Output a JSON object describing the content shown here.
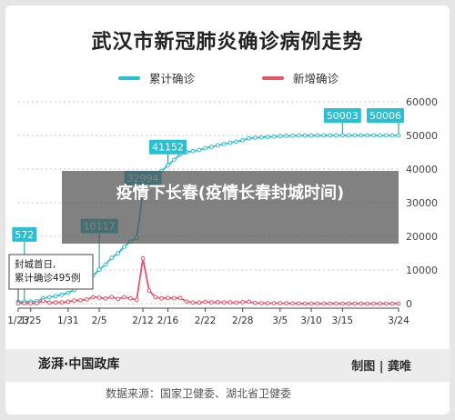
{
  "chart_data": {
    "type": "line",
    "title": "武汉市新冠肺炎确诊病例走势",
    "xlabel": "",
    "ylabel": "",
    "ylim": [
      0,
      60000
    ],
    "yticks": [
      0,
      10000,
      20000,
      30000,
      40000,
      50000,
      60000
    ],
    "ytick_labels": [
      "0",
      "10000",
      "20000",
      "30000",
      "40000",
      "50000",
      "60000"
    ],
    "xticks": [
      "1/23",
      "1/25",
      "1/31",
      "2/5",
      "2/12",
      "2/16",
      "2/22",
      "2/28",
      "3/5",
      "3/10",
      "3/15",
      "3/24"
    ],
    "legend_position": "top",
    "grid": true,
    "series": [
      {
        "name": "累计确诊",
        "color": "#2bbfcf",
        "points": [
          [
            "1/23",
            495
          ],
          [
            "1/24",
            572
          ],
          [
            "1/25",
            618
          ],
          [
            "1/26",
            698
          ],
          [
            "1/27",
            1590
          ],
          [
            "1/28",
            1905
          ],
          [
            "1/29",
            2261
          ],
          [
            "1/30",
            2639
          ],
          [
            "1/31",
            3215
          ],
          [
            "2/1",
            4109
          ],
          [
            "2/2",
            5142
          ],
          [
            "2/3",
            6384
          ],
          [
            "2/4",
            8351
          ],
          [
            "2/5",
            10117
          ],
          [
            "2/6",
            11618
          ],
          [
            "2/7",
            13603
          ],
          [
            "2/8",
            14982
          ],
          [
            "2/9",
            16902
          ],
          [
            "2/10",
            18454
          ],
          [
            "2/11",
            19558
          ],
          [
            "2/12",
            32994
          ],
          [
            "2/13",
            35991
          ],
          [
            "2/14",
            37914
          ],
          [
            "2/15",
            39462
          ],
          [
            "2/16",
            41152
          ],
          [
            "2/17",
            42752
          ],
          [
            "2/18",
            44412
          ],
          [
            "2/19",
            45027
          ],
          [
            "2/20",
            45346
          ],
          [
            "2/21",
            45660
          ],
          [
            "2/22",
            46201
          ],
          [
            "2/23",
            46607
          ],
          [
            "2/24",
            47071
          ],
          [
            "2/25",
            47441
          ],
          [
            "2/26",
            47824
          ],
          [
            "2/27",
            48137
          ],
          [
            "2/28",
            48557
          ],
          [
            "2/29",
            49122
          ],
          [
            "3/1",
            49315
          ],
          [
            "3/2",
            49426
          ],
          [
            "3/3",
            49540
          ],
          [
            "3/4",
            49671
          ],
          [
            "3/5",
            49797
          ],
          [
            "3/6",
            49871
          ],
          [
            "3/7",
            49912
          ],
          [
            "3/8",
            49948
          ],
          [
            "3/9",
            49965
          ],
          [
            "3/10",
            49978
          ],
          [
            "3/11",
            49986
          ],
          [
            "3/12",
            49991
          ],
          [
            "3/13",
            49995
          ],
          [
            "3/14",
            49999
          ],
          [
            "3/15",
            50003
          ],
          [
            "3/16",
            50004
          ],
          [
            "3/17",
            50005
          ],
          [
            "3/18",
            50005
          ],
          [
            "3/19",
            50005
          ],
          [
            "3/20",
            50005
          ],
          [
            "3/21",
            50005
          ],
          [
            "3/22",
            50005
          ],
          [
            "3/23",
            50006
          ],
          [
            "3/24",
            50006
          ]
        ]
      },
      {
        "name": "新增确诊",
        "color": "#e8556a",
        "points": [
          [
            "1/23",
            70
          ],
          [
            "1/24",
            77
          ],
          [
            "1/25",
            46
          ],
          [
            "1/26",
            80
          ],
          [
            "1/27",
            892
          ],
          [
            "1/28",
            315
          ],
          [
            "1/29",
            356
          ],
          [
            "1/30",
            378
          ],
          [
            "1/31",
            576
          ],
          [
            "2/1",
            894
          ],
          [
            "2/2",
            1033
          ],
          [
            "2/3",
            1242
          ],
          [
            "2/4",
            1967
          ],
          [
            "2/5",
            1766
          ],
          [
            "2/6",
            1501
          ],
          [
            "2/7",
            1985
          ],
          [
            "2/8",
            1379
          ],
          [
            "2/9",
            1920
          ],
          [
            "2/10",
            1552
          ],
          [
            "2/11",
            1104
          ],
          [
            "2/12",
            13436
          ],
          [
            "2/13",
            3910
          ],
          [
            "2/14",
            1923
          ],
          [
            "2/15",
            1548
          ],
          [
            "2/16",
            1690
          ],
          [
            "2/17",
            1600
          ],
          [
            "2/18",
            1660
          ],
          [
            "2/19",
            615
          ],
          [
            "2/20",
            319
          ],
          [
            "2/21",
            314
          ],
          [
            "2/22",
            541
          ],
          [
            "2/23",
            348
          ],
          [
            "2/24",
            464
          ],
          [
            "2/25",
            370
          ],
          [
            "2/26",
            383
          ],
          [
            "2/27",
            313
          ],
          [
            "2/28",
            420
          ],
          [
            "2/29",
            565
          ],
          [
            "3/1",
            193
          ],
          [
            "3/2",
            111
          ],
          [
            "3/3",
            114
          ],
          [
            "3/4",
            131
          ],
          [
            "3/5",
            126
          ],
          [
            "3/6",
            74
          ],
          [
            "3/7",
            41
          ],
          [
            "3/8",
            36
          ],
          [
            "3/9",
            17
          ],
          [
            "3/10",
            13
          ],
          [
            "3/11",
            8
          ],
          [
            "3/12",
            5
          ],
          [
            "3/13",
            4
          ],
          [
            "3/14",
            4
          ],
          [
            "3/15",
            4
          ],
          [
            "3/16",
            1
          ],
          [
            "3/17",
            1
          ],
          [
            "3/18",
            0
          ],
          [
            "3/19",
            0
          ],
          [
            "3/20",
            0
          ],
          [
            "3/21",
            0
          ],
          [
            "3/22",
            0
          ],
          [
            "3/23",
            1
          ],
          [
            "3/24",
            0
          ]
        ]
      }
    ],
    "value_labels": [
      {
        "x": "1/24",
        "value": "572"
      },
      {
        "x": "2/5",
        "value": "10117"
      },
      {
        "x": "2/12",
        "value": "32994"
      },
      {
        "x": "2/16",
        "value": "41152"
      },
      {
        "x": "3/15",
        "value": "50003"
      },
      {
        "x": "3/24",
        "value": "50006"
      }
    ],
    "annotation": {
      "x": "1/23",
      "lines": [
        "封城首日,",
        "累计确诊495例"
      ]
    }
  },
  "footer": {
    "brand": "澎湃·中国政库",
    "credit": "制图 | 龚唯",
    "source": "数据来源：国家卫健委、湖北省卫健委"
  },
  "overlay": {
    "text": "疫情下长春(疫情长春封城时间)"
  },
  "colors": {
    "cumulative": "#2bbfcf",
    "daily_new": "#e8556a",
    "grid": "#c8c8c8",
    "overlay": "#505050"
  }
}
